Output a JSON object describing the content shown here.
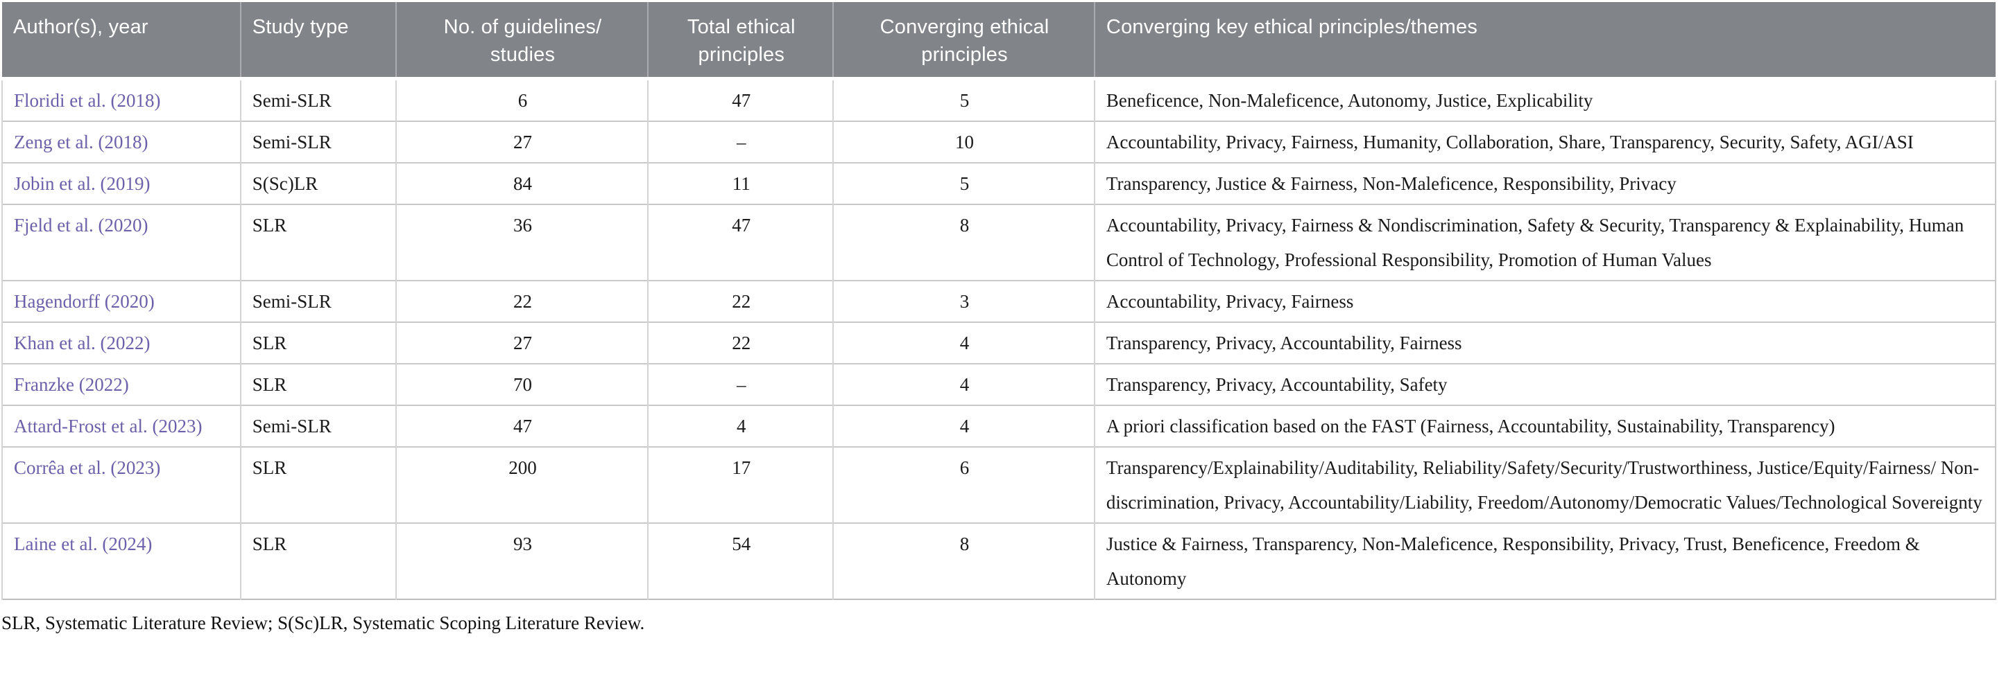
{
  "colors": {
    "header_bg": "#818488",
    "header_text": "#ffffff",
    "author_link": "#6C60AA",
    "body_text": "#1a1a1a",
    "grid_line": "#c9c9c9"
  },
  "table": {
    "columns": [
      {
        "key": "author",
        "label": "Author(s), year",
        "align": "left",
        "width": "11.96%"
      },
      {
        "key": "study_type",
        "label": "Study type",
        "align": "left",
        "width": "7.79%"
      },
      {
        "key": "num_guidelines",
        "label": "No. of guidelines/\nstudies",
        "align": "center",
        "width": "12.66%"
      },
      {
        "key": "total_principles",
        "label": "Total ethical\nprinciples",
        "align": "center",
        "width": "9.28%"
      },
      {
        "key": "converging_principles",
        "label": "Converging ethical\nprinciples",
        "align": "center",
        "width": "13.11%"
      },
      {
        "key": "themes",
        "label": "Converging key ethical principles/themes",
        "align": "left",
        "width": "45.20%"
      }
    ],
    "rows": [
      {
        "author": "Floridi et al. (2018)",
        "study_type": "Semi-SLR",
        "num_guidelines": "6",
        "total_principles": "47",
        "converging_principles": "5",
        "themes": "Beneficence, Non-Maleficence, Autonomy, Justice, Explicability"
      },
      {
        "author": "Zeng et al. (2018)",
        "study_type": "Semi-SLR",
        "num_guidelines": "27",
        "total_principles": "–",
        "converging_principles": "10",
        "themes": "Accountability, Privacy, Fairness, Humanity, Collaboration, Share, Transparency, Security, Safety, AGI/ASI"
      },
      {
        "author": "Jobin et al. (2019)",
        "study_type": "S(Sc)LR",
        "num_guidelines": "84",
        "total_principles": "11",
        "converging_principles": "5",
        "themes": "Transparency, Justice & Fairness, Non-Maleficence, Responsibility, Privacy"
      },
      {
        "author": "Fjeld et al. (2020)",
        "study_type": "SLR",
        "num_guidelines": "36",
        "total_principles": "47",
        "converging_principles": "8",
        "themes": "Accountability, Privacy, Fairness & Nondiscrimination, Safety & Security, Transparency & Explainability, Human Control of Technology, Professional Responsibility, Promotion of Human Values"
      },
      {
        "author": "Hagendorff (2020)",
        "study_type": "Semi-SLR",
        "num_guidelines": "22",
        "total_principles": "22",
        "converging_principles": "3",
        "themes": "Accountability, Privacy, Fairness"
      },
      {
        "author": "Khan et al. (2022)",
        "study_type": "SLR",
        "num_guidelines": "27",
        "total_principles": "22",
        "converging_principles": "4",
        "themes": "Transparency, Privacy, Accountability, Fairness"
      },
      {
        "author": "Franzke (2022)",
        "study_type": "SLR",
        "num_guidelines": "70",
        "total_principles": "–",
        "converging_principles": "4",
        "themes": "Transparency, Privacy, Accountability, Safety"
      },
      {
        "author": "Attard-Frost et al. (2023)",
        "study_type": "Semi-SLR",
        "num_guidelines": "47",
        "total_principles": "4",
        "converging_principles": "4",
        "themes": "A priori classification based on the FAST (Fairness, Accountability, Sustainability, Transparency)"
      },
      {
        "author": "Corrêa et al. (2023)",
        "study_type": "SLR",
        "num_guidelines": "200",
        "total_principles": "17",
        "converging_principles": "6",
        "themes": "Transparency/Explainability/Auditability, Reliability/Safety/Security/Trustworthiness, Justice/Equity/Fairness/ Non-discrimination, Privacy, Accountability/Liability, Freedom/Autonomy/Democratic Values/Technological Sovereignty"
      },
      {
        "author": "Laine et al. (2024)",
        "study_type": "SLR",
        "num_guidelines": "93",
        "total_principles": "54",
        "converging_principles": "8",
        "themes": "Justice & Fairness, Transparency, Non-Maleficence, Responsibility, Privacy, Trust, Beneficence, Freedom & Autonomy"
      }
    ],
    "footnote": "SLR, Systematic Literature Review; S(Sc)LR, Systematic Scoping Literature Review."
  }
}
